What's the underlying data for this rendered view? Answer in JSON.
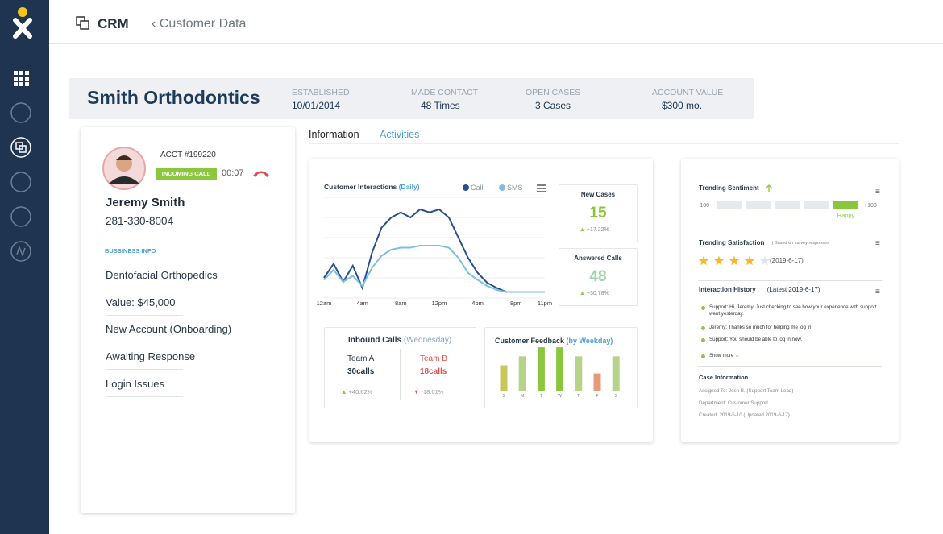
{
  "topbar": {
    "title": "CRM",
    "breadcrumb": "Customer Data"
  },
  "account": {
    "name": "Smith Orthodontics",
    "stats": [
      {
        "label": "ESTABLISHED",
        "value": "10/01/2014"
      },
      {
        "label": "MADE CONTACT",
        "value": "48 Times"
      },
      {
        "label": "OPEN CASES",
        "value": "3 Cases"
      },
      {
        "label": "ACCOUNT VALUE",
        "value": "$300 mo."
      }
    ]
  },
  "contact": {
    "acct": "ACCT #199220",
    "call_status": "INCOMING CALL",
    "call_time": "00:07",
    "name": "Jeremy Smith",
    "phone": "281-330-8004",
    "section": "BUSSINESS INFO",
    "items": [
      "Dentofacial Orthopedics",
      "Value: $45,000",
      "New Account (Onboarding)",
      "Awaiting Response",
      "Login Issues"
    ]
  },
  "tabs": [
    "Information",
    "Activities"
  ],
  "interactions_chart": {
    "type": "line",
    "title": "Customer Interactions",
    "subtitle": "(Daily)",
    "categories": [
      "12am",
      null,
      null,
      null,
      "4am",
      null,
      null,
      null,
      "8am",
      null,
      null,
      null,
      "12pm",
      null,
      null,
      null,
      "4pm",
      null,
      null,
      null,
      "8pm",
      null,
      null,
      "11pm"
    ],
    "ylim": [
      0,
      100
    ],
    "grid": true,
    "series": [
      {
        "name": "Call",
        "color": "#2a4f8f",
        "values": [
          20,
          34,
          16,
          32,
          10,
          45,
          70,
          80,
          85,
          80,
          88,
          85,
          88,
          80,
          60,
          40,
          25,
          15,
          10,
          6,
          6,
          6,
          6,
          6
        ]
      },
      {
        "name": "SMS",
        "color": "#7fbfe0",
        "values": [
          18,
          28,
          16,
          22,
          12,
          30,
          42,
          48,
          50,
          50,
          52,
          52,
          52,
          50,
          40,
          25,
          18,
          12,
          8,
          6,
          6,
          6,
          6,
          6
        ]
      }
    ]
  },
  "kpis": [
    {
      "label": "New Cases",
      "value": "15",
      "change": "+17.22%"
    },
    {
      "label": "Answered Calls",
      "value": "48",
      "change": "+30.78%"
    }
  ],
  "inbound_calls": {
    "title": "Inbound Calls",
    "subtitle": "(Wednesday)",
    "teams": [
      {
        "name": "Team A",
        "calls": "30calls",
        "change": "+40.62%"
      },
      {
        "name": "Team B",
        "calls": "18calls",
        "change": "-18.01%"
      }
    ]
  },
  "feedback_chart": {
    "type": "bar",
    "title": "Customer Feedback",
    "subtitle": "(by Weekday)",
    "categories": [
      "S",
      "M",
      "T",
      "W",
      "T",
      "F",
      "S"
    ],
    "values": [
      29,
      39,
      49,
      49,
      39,
      20,
      39
    ],
    "colors": [
      "#c9c65a",
      "#b5d48a",
      "#8cc63f",
      "#8cc63f",
      "#b5d48a",
      "#e59a78",
      "#b5d48a"
    ],
    "ylim": [
      0,
      50
    ]
  },
  "sentiment": {
    "title": "Trending Sentiment",
    "min": -100,
    "max": {
      "value": 100,
      "label": "+100"
    },
    "value": 80,
    "label": "Happy"
  },
  "satisfaction": {
    "title": "Trending Satisfaction",
    "note": "Based on survey responses",
    "rating": 4,
    "max": 5,
    "date": "(2019-6-17)"
  },
  "history": {
    "title": "Interaction History",
    "latest": "(Latest 2019-6-17)",
    "messages": [
      "Support: Hi, Jeremy. Just checking to see how your experience with support went yesterday.",
      "Jeremy: Thanks so much for helping me log in!",
      "Support: You should be able to log in now."
    ],
    "more": "Show more"
  },
  "case_info": {
    "title": "Case Information",
    "lines": [
      "Assigned To: Josh B. (Support Team Lead)",
      "Department: Customer Support",
      "Created: 2019-5-10 (Updated 2019-6-17)"
    ]
  }
}
